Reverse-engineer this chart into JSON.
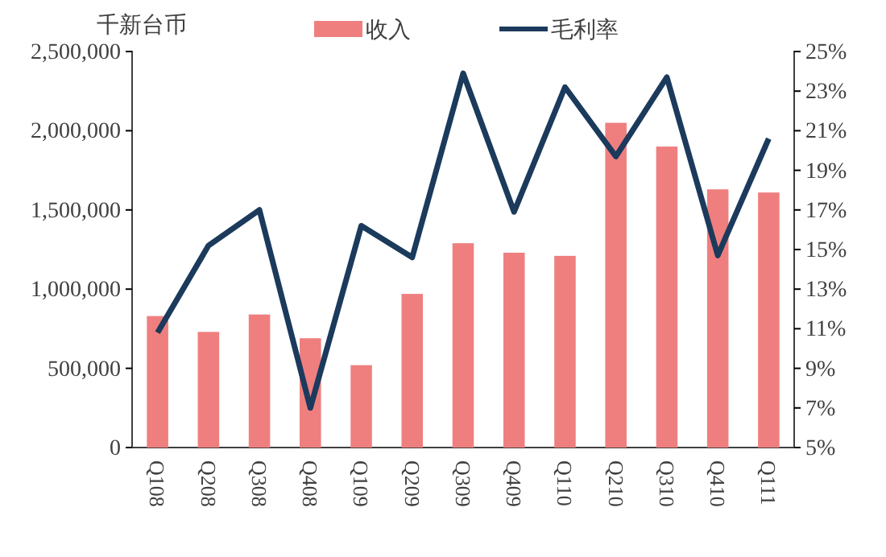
{
  "chart_data": {
    "type": "bar",
    "ylabel": "千新台币",
    "categories": [
      "Q108",
      "Q208",
      "Q308",
      "Q408",
      "Q109",
      "Q209",
      "Q309",
      "Q409",
      "Q110",
      "Q210",
      "Q310",
      "Q410",
      "Q111"
    ],
    "series": [
      {
        "name": "收入",
        "color": "#ef7f7f",
        "values": [
          830000,
          730000,
          840000,
          690000,
          520000,
          970000,
          1290000,
          1230000,
          1210000,
          2050000,
          1900000,
          1630000,
          1610000
        ]
      },
      {
        "name": "毛利率",
        "type": "line",
        "axis": "y2",
        "color": "#1b3a5c",
        "values": [
          10.8,
          15.2,
          17.0,
          7.0,
          16.2,
          14.6,
          23.9,
          16.9,
          23.2,
          19.7,
          23.7,
          14.7,
          20.6
        ]
      }
    ],
    "ylim": [
      0,
      2500000
    ],
    "yticks": [
      {
        "value": 0,
        "label": "0"
      },
      {
        "value": 500000,
        "label": "500,000"
      },
      {
        "value": 1000000,
        "label": "1,000,000"
      },
      {
        "value": 1500000,
        "label": "1,500,000"
      },
      {
        "value": 2000000,
        "label": "2,000,000"
      },
      {
        "value": 2500000,
        "label": "2,500,000"
      }
    ],
    "y2lim": [
      5,
      25
    ],
    "y2ticks": [
      {
        "value": 5,
        "label": "5%"
      },
      {
        "value": 7,
        "label": "7%"
      },
      {
        "value": 9,
        "label": "9%"
      },
      {
        "value": 11,
        "label": "11%"
      },
      {
        "value": 13,
        "label": "13%"
      },
      {
        "value": 15,
        "label": "15%"
      },
      {
        "value": 17,
        "label": "17%"
      },
      {
        "value": 19,
        "label": "19%"
      },
      {
        "value": 21,
        "label": "21%"
      },
      {
        "value": 23,
        "label": "23%"
      },
      {
        "value": 25,
        "label": "25%"
      }
    ],
    "grid": false,
    "legend": "top",
    "marker": "none",
    "line_style": "solid"
  }
}
